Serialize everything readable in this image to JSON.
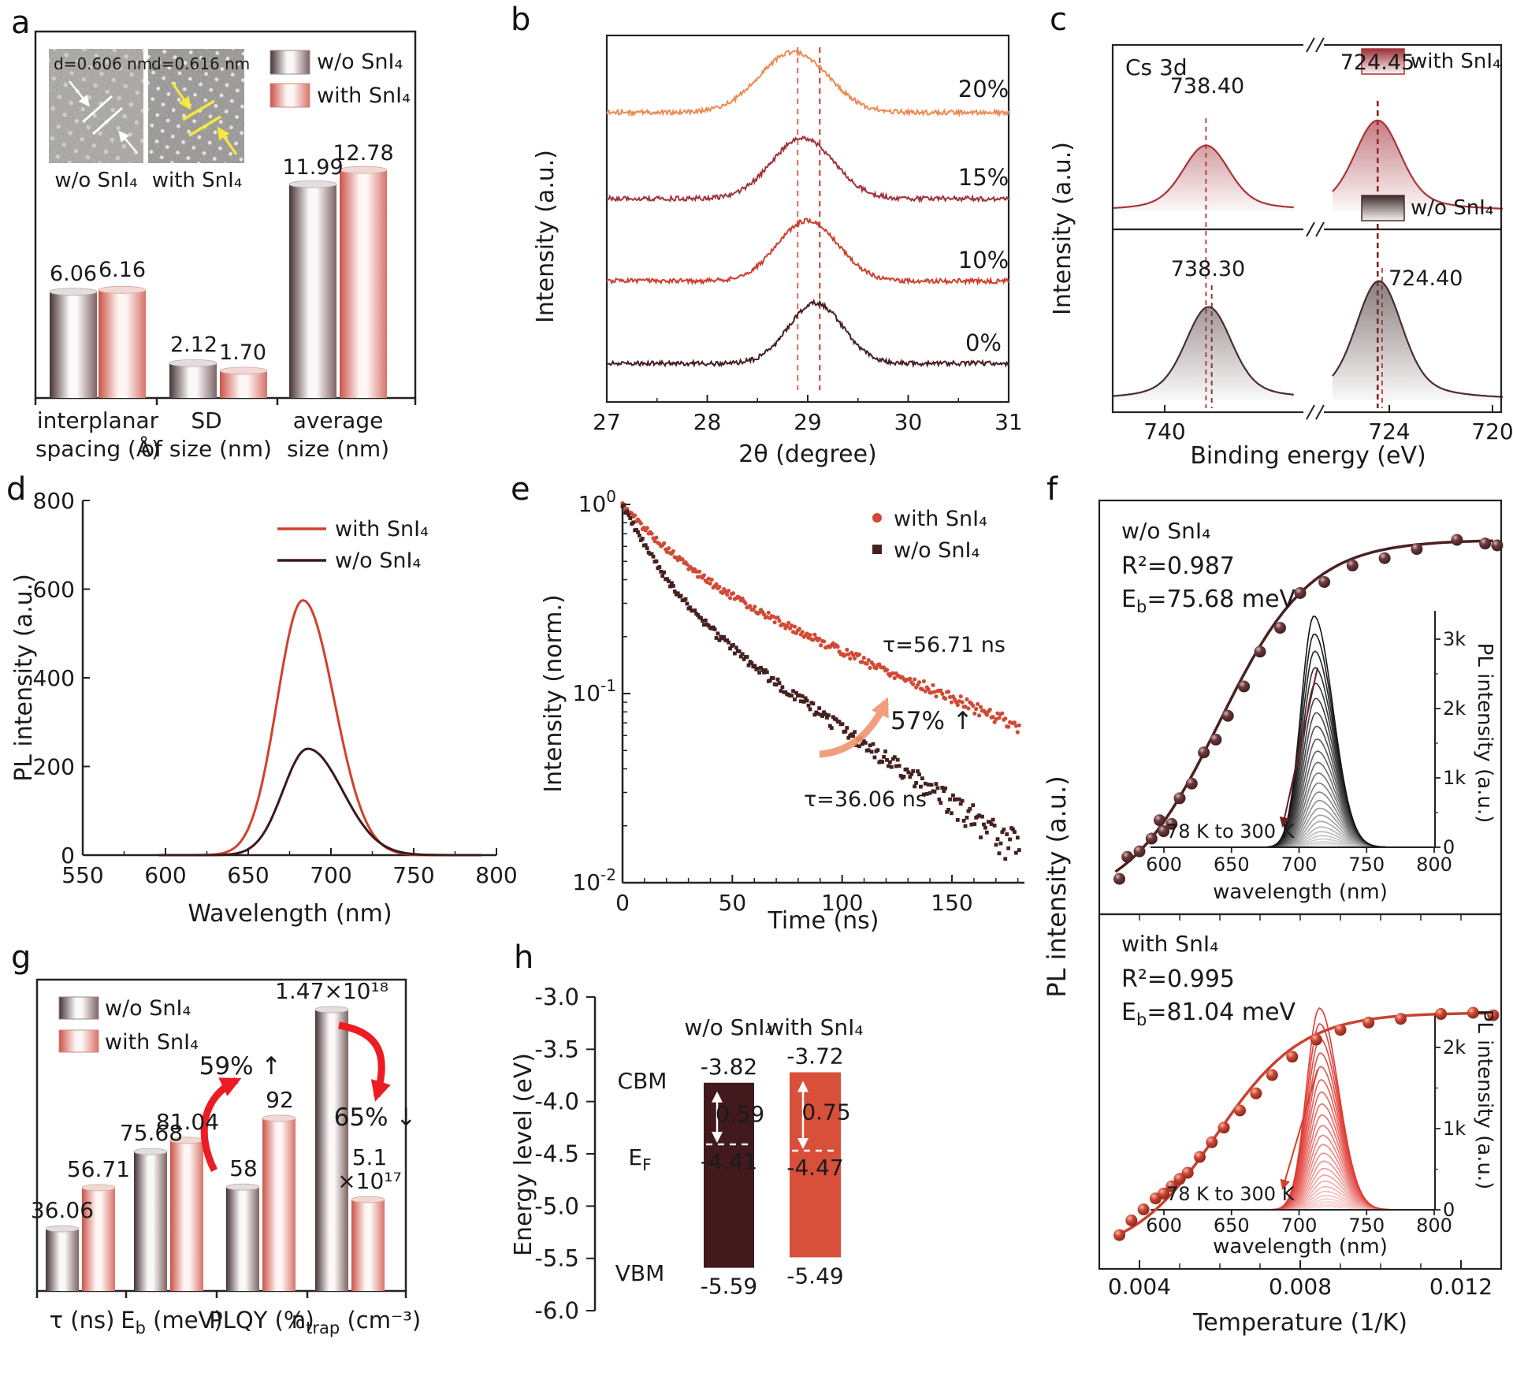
{
  "figure": {
    "panel_letters": [
      "a",
      "b",
      "c",
      "d",
      "e",
      "f",
      "g",
      "h"
    ],
    "background": "#ffffff"
  },
  "colors": {
    "axis": "#222222",
    "wo_edge": "#463334",
    "wo_mid": "#faf8f8",
    "wo_far": "#7d6263",
    "with_edge": "#cc5245",
    "with_mid": "#fdf6f5",
    "with_far": "#d87268",
    "accent_red": "#ed1c24",
    "salmon": "#f0946e",
    "dark_series": "#3a1a1a",
    "red_series": "#d2402c"
  },
  "chart_data": [
    {
      "panel": "a",
      "type": "bar",
      "series": [
        {
          "name": "w/o SnI₄",
          "values": [
            6.06,
            2.12,
            11.99
          ]
        },
        {
          "name": "with SnI₄",
          "values": [
            6.16,
            1.7,
            12.78
          ]
        }
      ],
      "value_labels": {
        "wo": [
          "6.06",
          "2.12",
          "11.99"
        ],
        "with": [
          "6.16",
          "1.70",
          "12.78"
        ]
      },
      "categories": [
        [
          "interplanar",
          "spacing (Å)"
        ],
        [
          "SD",
          "of size (nm)"
        ],
        [
          "average",
          "size (nm)"
        ]
      ],
      "ylim": [
        0,
        14
      ],
      "insets": [
        {
          "d_label": "d=0.606 nm",
          "caption": "w/o SnI₄",
          "annotation_color": "#ffffff"
        },
        {
          "d_label": "d=0.616 nm",
          "caption": "with SnI₄",
          "annotation_color": "#f6e93c"
        }
      ]
    },
    {
      "panel": "b",
      "type": "line",
      "xlabel": "2θ (degree)",
      "ylabel": "Intensity (a.u.)",
      "xlim": [
        27,
        31
      ],
      "x_ticks": [
        27,
        28,
        29,
        30,
        31
      ],
      "guide_lines": [
        28.9,
        29.12
      ],
      "amp_frac": 0.165,
      "series": [
        {
          "label": "0%",
          "color": "#451f22",
          "peak_center": 29.08,
          "offset_frac": 0.105,
          "sigma": 0.27,
          "seed": 11
        },
        {
          "label": "10%",
          "color": "#cd3f2d",
          "peak_center": 29.0,
          "offset_frac": 0.33,
          "sigma": 0.3,
          "seed": 22
        },
        {
          "label": "15%",
          "color": "#a1333e",
          "peak_center": 28.95,
          "offset_frac": 0.555,
          "sigma": 0.31,
          "seed": 33
        },
        {
          "label": "20%",
          "color": "#ec8a52",
          "peak_center": 28.86,
          "offset_frac": 0.79,
          "sigma": 0.34,
          "seed": 44
        }
      ]
    },
    {
      "panel": "c",
      "type": "line",
      "title": "Cs 3d",
      "xlabel": "Binding energy (eV)",
      "ylabel": "Intensity (a.u.)",
      "x_ticks": [
        740,
        724,
        720
      ],
      "top": {
        "legend": "with SnI₄",
        "color": "#a93339",
        "peaks": [
          {
            "be": 738.4,
            "label": "738.40",
            "amp": 0.72
          },
          {
            "be": 724.45,
            "label": "724.45",
            "amp": 1.0
          }
        ]
      },
      "bottom": {
        "legend": "w/o SnI₄",
        "color": "#4a2d2d",
        "peaks": [
          {
            "be": 738.3,
            "label": "738.30",
            "amp": 0.78
          },
          {
            "be": 724.4,
            "label": "724.40",
            "amp": 1.0
          }
        ]
      }
    },
    {
      "panel": "d",
      "type": "line",
      "xlabel": "Wavelength (nm)",
      "ylabel": "PL intensity (a.u.)",
      "xlim": [
        550,
        800
      ],
      "ylim": [
        0,
        800
      ],
      "x_ticks": [
        550,
        600,
        650,
        700,
        750,
        800
      ],
      "y_ticks": [
        0,
        200,
        400,
        600,
        800
      ],
      "series": [
        {
          "label": "with SnI₄",
          "color": "#d2402c",
          "peak_nm": 683,
          "amplitude": 575,
          "sigma_l": 15.5,
          "sigma_r": 19
        },
        {
          "label": "w/o SnI₄",
          "color": "#3a1a1a",
          "peak_nm": 686,
          "amplitude": 240,
          "sigma_l": 15,
          "sigma_r": 21
        }
      ]
    },
    {
      "panel": "e",
      "type": "scatter",
      "xlabel": "Time (ns)",
      "ylabel": "Intensity (norm.)",
      "xlim": [
        0,
        183
      ],
      "x_ticks": [
        0,
        50,
        100,
        150
      ],
      "y_ticks_exp": [
        "0",
        "-1",
        "-2"
      ],
      "series": [
        {
          "label": "with SnI₄",
          "color": "#d14a35",
          "marker": "circle",
          "tau_label": "τ=56.71 ns",
          "fit": {
            "a1": 0.5,
            "t1": 20,
            "a2": 0.5,
            "t2": 90
          },
          "seed": 5
        },
        {
          "label": "w/o SnI₄",
          "color": "#44201f",
          "marker": "square",
          "tau_label": "τ=36.06 ns",
          "fit": {
            "a1": 0.6,
            "t1": 13,
            "a2": 0.4,
            "t2": 55
          },
          "seed": 9
        }
      ],
      "annotation": {
        "text": "57% ↑",
        "color": "#f0946e"
      }
    },
    {
      "panel": "f",
      "type": "scatter",
      "xlabel": "Temperature (1/K)",
      "ylabel": "PL intensity (a.u.)",
      "x_ticks": [
        0.004,
        0.008,
        0.012
      ],
      "sub": [
        {
          "name": "w/o SnI₄",
          "r2": "R²=0.987",
          "eb_pre": "E",
          "eb_sub": "b",
          "eb_post": "=75.68 meV",
          "text_color": "#5c2123",
          "point_color": "#4a2022",
          "fit": {
            "A": 190,
            "B": 878
          },
          "points": [
            [
              0.0035,
              0.075
            ],
            [
              0.0037,
              0.135
            ],
            [
              0.004,
              0.15
            ],
            [
              0.0043,
              0.185
            ],
            [
              0.0045,
              0.235
            ],
            [
              0.0046,
              0.205
            ],
            [
              0.0048,
              0.225
            ],
            [
              0.005,
              0.295
            ],
            [
              0.0053,
              0.335
            ],
            [
              0.0056,
              0.42
            ],
            [
              0.0059,
              0.455
            ],
            [
              0.0062,
              0.52
            ],
            [
              0.0066,
              0.6
            ],
            [
              0.007,
              0.695
            ],
            [
              0.0075,
              0.76
            ],
            [
              0.008,
              0.855
            ],
            [
              0.0086,
              0.885
            ],
            [
              0.0093,
              0.93
            ],
            [
              0.0101,
              0.95
            ],
            [
              0.0109,
              0.975
            ],
            [
              0.0119,
              1.0
            ],
            [
              0.0126,
              0.99
            ],
            [
              0.0129,
              0.985
            ]
          ],
          "range_label": "78 K to 300 K",
          "inset": {
            "xlabel": "wavelength (nm)",
            "ylabel": "PL intensity (a.u.)",
            "x_ticks": [
              600,
              650,
              700,
              750,
              800
            ],
            "y_ticks": [
              "0",
              "1k",
              "2k",
              "3k"
            ],
            "n_curves": 26,
            "peak_max_k": 3.3,
            "center_nm": 711,
            "center_shift_nm": 7,
            "color_dark": "#141414",
            "color_light": "#ececec"
          }
        },
        {
          "name": "with SnI₄",
          "r2": "R²=0.995",
          "eb_pre": "E",
          "eb_sub": "b",
          "eb_post": "=81.04 meV",
          "text_color": "#d2402c",
          "point_color": "#c8432f",
          "fit": {
            "A": 260,
            "B": 940
          },
          "points": [
            [
              0.0035,
              0.09
            ],
            [
              0.0038,
              0.15
            ],
            [
              0.0041,
              0.195
            ],
            [
              0.0044,
              0.24
            ],
            [
              0.0046,
              0.26
            ],
            [
              0.0048,
              0.29
            ],
            [
              0.005,
              0.32
            ],
            [
              0.0052,
              0.345
            ],
            [
              0.0055,
              0.41
            ],
            [
              0.0058,
              0.47
            ],
            [
              0.0061,
              0.53
            ],
            [
              0.0065,
              0.6
            ],
            [
              0.0069,
              0.67
            ],
            [
              0.0073,
              0.745
            ],
            [
              0.0078,
              0.82
            ],
            [
              0.0084,
              0.89
            ],
            [
              0.009,
              0.93
            ],
            [
              0.0097,
              0.96
            ],
            [
              0.0105,
              0.975
            ],
            [
              0.0115,
              0.995
            ],
            [
              0.0123,
              1.0
            ],
            [
              0.0128,
              0.99
            ]
          ],
          "range_label": "78 K to 300 K",
          "inset": {
            "xlabel": "wavelength (nm)",
            "ylabel": "PL intensity (a.u.)",
            "x_ticks": [
              600,
              650,
              700,
              750,
              800
            ],
            "y_ticks": [
              "0",
              "1k",
              "2k"
            ],
            "n_curves": 26,
            "peak_max_k": 2.45,
            "center_nm": 715,
            "center_shift_nm": 6,
            "color_dark": "#e03a34",
            "color_light": "#fce8e6"
          }
        }
      ]
    },
    {
      "panel": "g",
      "type": "bar",
      "series": [
        {
          "name": "w/o SnI₄"
        },
        {
          "name": "with SnI₄"
        }
      ],
      "value_labels": {
        "wo": [
          "36.06",
          "75.68",
          "58",
          "1.47×10¹⁸"
        ],
        "with": [
          "56.71",
          "81.04",
          "92",
          "5.1",
          "×10¹⁷"
        ]
      },
      "height_fracs": {
        "wo": [
          0.21,
          0.458,
          0.344,
          0.914
        ],
        "with": [
          0.342,
          0.494,
          0.565,
          0.304
        ]
      },
      "categories": [
        {
          "pre": "τ (ns)",
          "sub": "",
          "post": ""
        },
        {
          "pre": "E",
          "sub": "b",
          "post": " (meV)"
        },
        {
          "pre": "PLQY (%)",
          "sub": "",
          "post": ""
        },
        {
          "pre": "n",
          "sub": "trap",
          "post": " (cm⁻³)"
        }
      ],
      "annotations": {
        "up": "59% ↑",
        "down": "65% ↓",
        "color": "#ed1c24"
      }
    },
    {
      "panel": "h",
      "type": "bar",
      "ylabel": "Energy level (eV)",
      "y_ticks": [
        "-3.0",
        "-3.5",
        "-4.0",
        "-4.5",
        "-5.0",
        "-5.5",
        "-6.0"
      ],
      "ylim": [
        -6.0,
        -3.0
      ],
      "rows": [
        {
          "pre": "CBM",
          "sub": ""
        },
        {
          "pre": "E",
          "sub": "F"
        },
        {
          "pre": "VBM",
          "sub": ""
        }
      ],
      "columns": [
        {
          "header": "w/o SnI₄",
          "color": "#42191d",
          "cbm": -3.82,
          "vbm": -5.59,
          "ef": -4.41,
          "gap": "0.59"
        },
        {
          "header": "with SnI₄",
          "color": "#d8503a",
          "cbm": -3.72,
          "vbm": -5.49,
          "ef": -4.47,
          "gap": "0.75"
        }
      ]
    }
  ]
}
